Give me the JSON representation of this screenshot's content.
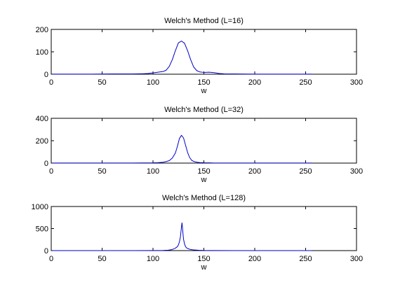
{
  "colors": {
    "line": "#0000cc",
    "axis": "#000000",
    "background": "#ffffff"
  },
  "chart_data": [
    {
      "type": "line",
      "title": "Welch's Method (L=16)",
      "xlabel": "w",
      "ylabel": "",
      "xlim": [
        0,
        300
      ],
      "ylim": [
        0,
        200
      ],
      "xticks": [
        0,
        50,
        100,
        150,
        200,
        250,
        300
      ],
      "yticks": [
        0,
        100,
        200
      ],
      "grid": false,
      "series": [
        {
          "x": [
            1,
            20,
            40,
            60,
            80,
            90,
            95,
            100,
            105,
            110,
            113,
            116,
            119,
            122,
            125,
            128,
            131,
            134,
            137,
            140,
            143,
            146,
            150,
            155,
            160,
            165,
            170,
            180,
            200,
            220,
            240,
            256
          ],
          "values": [
            0.5,
            0.5,
            0.5,
            1,
            1,
            2,
            3,
            6,
            9,
            12,
            18,
            35,
            65,
            105,
            140,
            148,
            138,
            105,
            65,
            32,
            16,
            10,
            8,
            9,
            7,
            3,
            1.5,
            1,
            0.5,
            0.5,
            0.5,
            0.5
          ]
        }
      ]
    },
    {
      "type": "line",
      "title": "Welch's Method (L=32)",
      "xlabel": "w",
      "ylabel": "",
      "xlim": [
        0,
        300
      ],
      "ylim": [
        0,
        400
      ],
      "xticks": [
        0,
        50,
        100,
        150,
        200,
        250,
        300
      ],
      "yticks": [
        0,
        200,
        400
      ],
      "grid": false,
      "series": [
        {
          "x": [
            1,
            20,
            40,
            60,
            80,
            100,
            105,
            110,
            113,
            116,
            119,
            122,
            124,
            126,
            128,
            130,
            132,
            134,
            136,
            138,
            140,
            143,
            146,
            150,
            155,
            160,
            180,
            200,
            220,
            240,
            256
          ],
          "values": [
            0.5,
            0.5,
            0.5,
            1,
            1,
            2,
            4,
            8,
            14,
            22,
            45,
            90,
            150,
            220,
            248,
            225,
            160,
            95,
            50,
            25,
            15,
            8,
            5,
            3,
            2,
            1,
            0.5,
            0.5,
            0.5,
            0.5,
            0.5
          ]
        }
      ]
    },
    {
      "type": "line",
      "title": "Welch's Method (L=128)",
      "xlabel": "w",
      "ylabel": "",
      "xlim": [
        0,
        300
      ],
      "ylim": [
        0,
        1000
      ],
      "xticks": [
        0,
        50,
        100,
        150,
        200,
        250,
        300
      ],
      "yticks": [
        0,
        500,
        1000
      ],
      "grid": false,
      "series": [
        {
          "x": [
            1,
            20,
            40,
            60,
            80,
            100,
            110,
            115,
            118,
            120,
            122,
            124,
            125,
            126,
            127,
            128,
            128.5,
            129,
            129.5,
            130,
            131,
            132,
            133,
            135,
            137,
            140,
            145,
            150,
            160,
            180,
            200,
            220,
            240,
            256
          ],
          "values": [
            0.5,
            0.5,
            0.5,
            0.5,
            1,
            2,
            5,
            10,
            20,
            35,
            55,
            90,
            130,
            200,
            320,
            540,
            630,
            520,
            380,
            260,
            150,
            90,
            60,
            40,
            25,
            15,
            8,
            4,
            2,
            1,
            0.5,
            0.5,
            0.5,
            0.5
          ]
        }
      ]
    }
  ]
}
